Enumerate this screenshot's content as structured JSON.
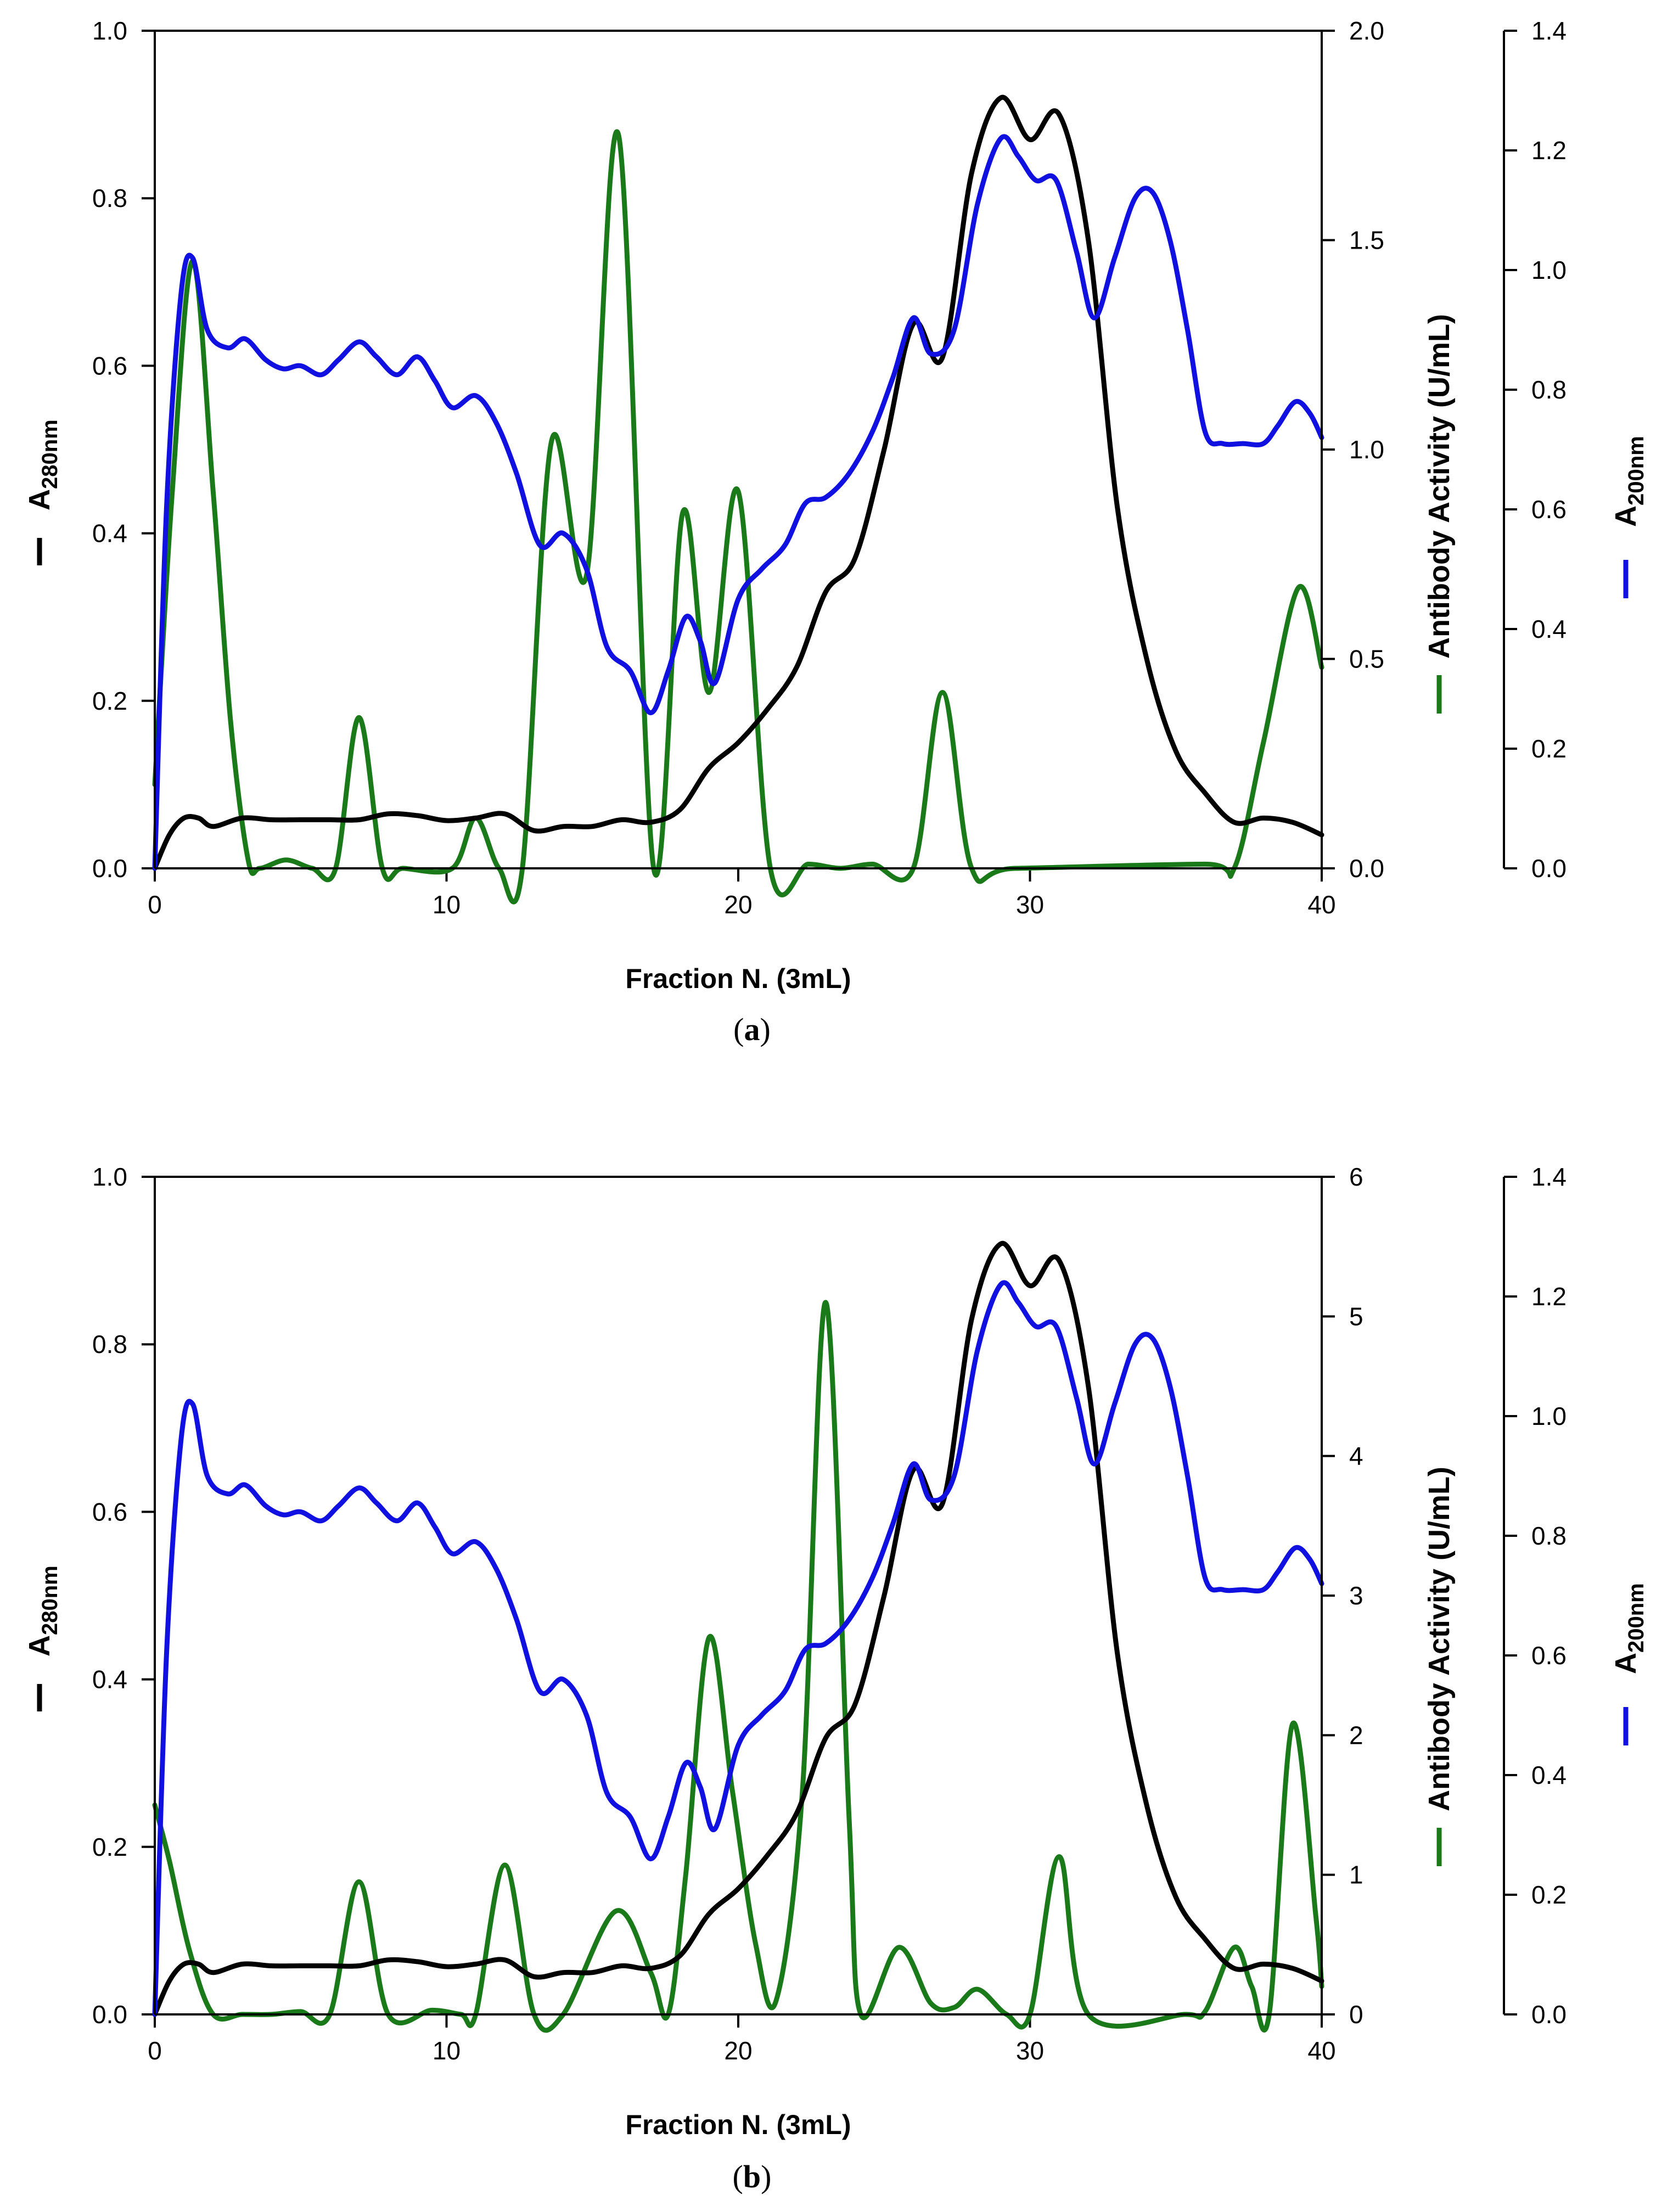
{
  "chart_data": [
    {
      "type": "line",
      "panel": "a",
      "caption": "(a)",
      "caption_letter": "a",
      "xlabel": "Fraction N. (3mL)",
      "xlim": [
        0,
        40
      ],
      "xticks": [
        "0",
        "10",
        "20",
        "30",
        "40"
      ],
      "axes": {
        "left": {
          "label_main": "A",
          "label_sub": "280nm",
          "ylim": [
            0,
            1.0
          ],
          "ticks": [
            "0.0",
            "0.2",
            "0.4",
            "0.6",
            "0.8",
            "1.0"
          ],
          "color": "#000000"
        },
        "right1": {
          "label": "Antibody Activity (U/mL)",
          "ylim": [
            0,
            2.0
          ],
          "ticks": [
            "0.0",
            "0.5",
            "1.0",
            "1.5",
            "2.0"
          ],
          "color": "#1a7a1a"
        },
        "right2": {
          "label_main": "A",
          "label_sub": "200nm",
          "ylim": [
            0,
            1.4
          ],
          "ticks": [
            "0.0",
            "0.2",
            "0.4",
            "0.6",
            "0.8",
            "1.0",
            "1.2",
            "1.4"
          ],
          "color": "#1010e0"
        }
      },
      "series": [
        {
          "name": "A280nm",
          "axis": "left",
          "color": "#000000",
          "x": [
            0,
            0.5,
            1,
            1.5,
            2,
            3,
            4,
            5,
            6,
            7,
            8,
            9,
            10,
            11,
            12,
            13,
            14,
            15,
            16,
            17,
            18,
            19,
            20,
            21,
            22,
            23,
            24,
            25,
            26,
            27,
            28,
            29,
            30,
            31,
            32,
            33,
            34,
            35,
            36,
            37,
            38,
            39,
            40
          ],
          "values": [
            0.0,
            0.04,
            0.06,
            0.06,
            0.05,
            0.06,
            0.058,
            0.058,
            0.058,
            0.058,
            0.065,
            0.063,
            0.057,
            0.06,
            0.065,
            0.045,
            0.05,
            0.05,
            0.058,
            0.055,
            0.07,
            0.12,
            0.15,
            0.19,
            0.24,
            0.33,
            0.37,
            0.5,
            0.65,
            0.61,
            0.83,
            0.92,
            0.87,
            0.9,
            0.75,
            0.43,
            0.25,
            0.14,
            0.09,
            0.055,
            0.06,
            0.055,
            0.04
          ]
        },
        {
          "name": "Antibody Activity",
          "axis": "right1",
          "color": "#1a7a1a",
          "x": [
            0,
            0.6,
            1.3,
            2,
            2.6,
            3.2,
            3.6,
            4.5,
            5.4,
            6.2,
            7,
            7.8,
            8.5,
            10.2,
            11,
            11.8,
            12.6,
            13.6,
            14.8,
            15.9,
            17.1,
            18.1,
            19,
            20,
            21.1,
            22.4,
            23.5,
            24.6,
            26,
            27,
            28,
            29.5,
            36,
            37,
            38,
            39.2,
            40
          ],
          "values": [
            0.2,
            0.9,
            1.45,
            0.9,
            0.35,
            0.02,
            0,
            0.02,
            0,
            0,
            0.36,
            0,
            0,
            0,
            0.12,
            0,
            0,
            1.02,
            0.7,
            1.75,
            0,
            0.85,
            0.42,
            0.9,
            0,
            0.01,
            0,
            0.01,
            0,
            0.42,
            0,
            0,
            0.01,
            0,
            0.3,
            0.67,
            0.48
          ]
        },
        {
          "name": "A200nm",
          "axis": "right2",
          "color": "#1010e0",
          "x": [
            0,
            0.4,
            0.9,
            1.3,
            1.8,
            2.5,
            3.1,
            3.8,
            4.4,
            5,
            5.7,
            6.3,
            7,
            7.6,
            8.3,
            9,
            9.6,
            10.2,
            11,
            11.7,
            12.4,
            13.2,
            14,
            14.8,
            15.5,
            16.3,
            17,
            17.6,
            18.2,
            18.7,
            19.2,
            20,
            20.8,
            21.6,
            22.3,
            23,
            23.8,
            24.6,
            25.3,
            26,
            26.6,
            27.4,
            28.2,
            29,
            29.6,
            30.2,
            30.9,
            31.6,
            32.2,
            32.9,
            33.6,
            34.2,
            34.8,
            35.4,
            36,
            36.6,
            37.3,
            38,
            38.5,
            39.1,
            39.6,
            40
          ],
          "values": [
            0.0,
            0.6,
            0.96,
            1.02,
            0.9,
            0.87,
            0.885,
            0.85,
            0.835,
            0.84,
            0.825,
            0.85,
            0.88,
            0.855,
            0.825,
            0.855,
            0.815,
            0.77,
            0.79,
            0.745,
            0.66,
            0.54,
            0.56,
            0.5,
            0.37,
            0.33,
            0.26,
            0.33,
            0.42,
            0.38,
            0.31,
            0.45,
            0.5,
            0.54,
            0.61,
            0.62,
            0.66,
            0.73,
            0.82,
            0.92,
            0.86,
            0.9,
            1.11,
            1.22,
            1.19,
            1.15,
            1.15,
            1.03,
            0.92,
            1.02,
            1.12,
            1.13,
            1.05,
            0.9,
            0.73,
            0.71,
            0.71,
            0.71,
            0.74,
            0.78,
            0.76,
            0.72
          ]
        }
      ]
    },
    {
      "type": "line",
      "panel": "b",
      "caption": "(b)",
      "caption_letter": "b",
      "xlabel": "Fraction N. (3mL)",
      "xlim": [
        0,
        40
      ],
      "xticks": [
        "0",
        "10",
        "20",
        "30",
        "40"
      ],
      "axes": {
        "left": {
          "label_main": "A",
          "label_sub": "280nm",
          "ylim": [
            0,
            1.0
          ],
          "ticks": [
            "0.0",
            "0.2",
            "0.4",
            "0.6",
            "0.8",
            "1.0"
          ],
          "color": "#000000"
        },
        "right1": {
          "label": "Antibody Activity (U/mL)",
          "ylim": [
            0,
            6
          ],
          "ticks": [
            "0",
            "1",
            "2",
            "3",
            "4",
            "5",
            "6"
          ],
          "color": "#1a7a1a"
        },
        "right2": {
          "label_main": "A",
          "label_sub": "200nm",
          "ylim": [
            0,
            1.4
          ],
          "ticks": [
            "0.0",
            "0.2",
            "0.4",
            "0.6",
            "0.8",
            "1.0",
            "1.2",
            "1.4"
          ],
          "color": "#1010e0"
        }
      },
      "series": [
        {
          "name": "A280nm",
          "axis": "left",
          "color": "#000000",
          "x": [
            0,
            0.5,
            1,
            1.5,
            2,
            3,
            4,
            5,
            6,
            7,
            8,
            9,
            10,
            11,
            12,
            13,
            14,
            15,
            16,
            17,
            18,
            19,
            20,
            21,
            22,
            23,
            24,
            25,
            26,
            27,
            28,
            29,
            30,
            31,
            32,
            33,
            34,
            35,
            36,
            37,
            38,
            39,
            40
          ],
          "values": [
            0.0,
            0.04,
            0.06,
            0.06,
            0.05,
            0.06,
            0.058,
            0.058,
            0.058,
            0.058,
            0.065,
            0.063,
            0.057,
            0.06,
            0.065,
            0.045,
            0.05,
            0.05,
            0.058,
            0.055,
            0.07,
            0.12,
            0.15,
            0.19,
            0.24,
            0.33,
            0.37,
            0.5,
            0.65,
            0.61,
            0.83,
            0.92,
            0.87,
            0.9,
            0.75,
            0.43,
            0.25,
            0.14,
            0.09,
            0.055,
            0.06,
            0.055,
            0.04
          ]
        },
        {
          "name": "Antibody Activity",
          "axis": "right1",
          "color": "#1a7a1a",
          "x": [
            0,
            0.5,
            1.2,
            2,
            3,
            4,
            5,
            6,
            7,
            8,
            9.5,
            10.5,
            11,
            12,
            13,
            14,
            15.8,
            17,
            17.6,
            18.2,
            19,
            19.8,
            20.6,
            21.3,
            22.2,
            23,
            23.8,
            24.2,
            25.5,
            26.6,
            27.4,
            28.2,
            29.2,
            30,
            31,
            32,
            35.3,
            36,
            37,
            37.6,
            38.2,
            39,
            39.8,
            40
          ],
          "values": [
            1.5,
            1.1,
            0.45,
            0,
            0,
            0,
            0.02,
            0,
            0.95,
            0,
            0.03,
            0,
            0,
            1.07,
            0,
            0,
            0.74,
            0.3,
            0,
            1.0,
            2.7,
            1.6,
            0.5,
            0.1,
            1.6,
            5.1,
            1.4,
            0,
            0.48,
            0.08,
            0.05,
            0.18,
            0,
            0,
            1.13,
            0,
            0,
            0.02,
            0.48,
            0.2,
            0,
            2.08,
            0.7,
            0.2
          ]
        },
        {
          "name": "A200nm",
          "axis": "right2",
          "color": "#1010e0",
          "x": [
            0,
            0.4,
            0.9,
            1.3,
            1.8,
            2.5,
            3.1,
            3.8,
            4.4,
            5,
            5.7,
            6.3,
            7,
            7.6,
            8.3,
            9,
            9.6,
            10.2,
            11,
            11.7,
            12.4,
            13.2,
            14,
            14.8,
            15.5,
            16.3,
            17,
            17.6,
            18.2,
            18.7,
            19.2,
            20,
            20.8,
            21.6,
            22.3,
            23,
            23.8,
            24.6,
            25.3,
            26,
            26.6,
            27.4,
            28.2,
            29,
            29.6,
            30.2,
            30.9,
            31.6,
            32.2,
            32.9,
            33.6,
            34.2,
            34.8,
            35.4,
            36,
            36.6,
            37.3,
            38,
            38.5,
            39.1,
            39.6,
            40
          ],
          "values": [
            0.0,
            0.6,
            0.96,
            1.02,
            0.9,
            0.87,
            0.885,
            0.85,
            0.835,
            0.84,
            0.825,
            0.85,
            0.88,
            0.855,
            0.825,
            0.855,
            0.815,
            0.77,
            0.79,
            0.745,
            0.66,
            0.54,
            0.56,
            0.5,
            0.37,
            0.33,
            0.26,
            0.33,
            0.42,
            0.38,
            0.31,
            0.45,
            0.5,
            0.54,
            0.61,
            0.62,
            0.66,
            0.73,
            0.82,
            0.92,
            0.86,
            0.9,
            1.11,
            1.22,
            1.19,
            1.15,
            1.15,
            1.03,
            0.92,
            1.02,
            1.12,
            1.13,
            1.05,
            0.9,
            0.73,
            0.71,
            0.71,
            0.71,
            0.74,
            0.78,
            0.76,
            0.72
          ]
        }
      ]
    }
  ]
}
